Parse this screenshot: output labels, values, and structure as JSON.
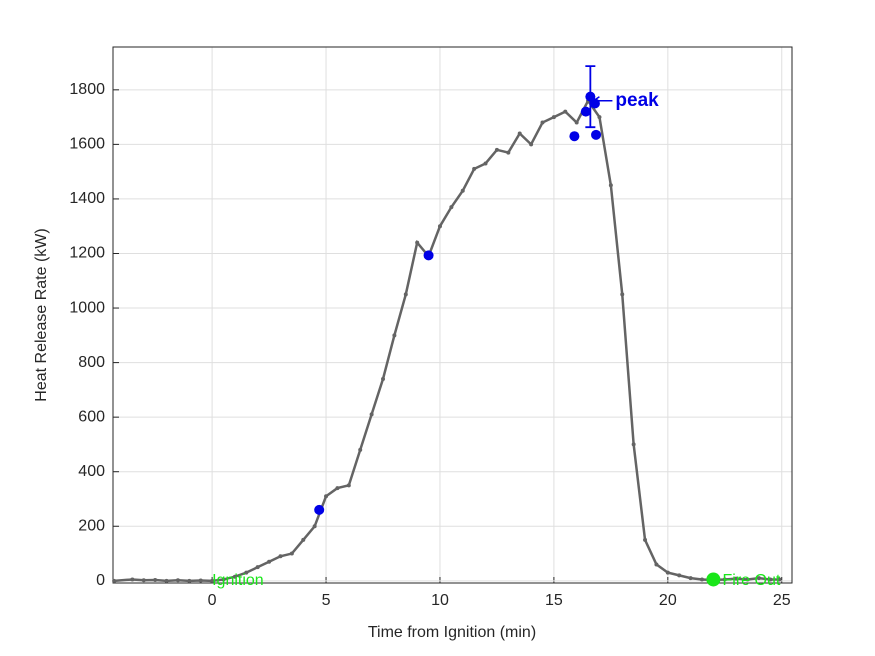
{
  "chart_data": {
    "type": "line",
    "xlabel": "Time from Ignition (min)",
    "ylabel": "Heat Release Rate (kW)",
    "xlim": [
      -4.35,
      25.45
    ],
    "ylim": [
      -8,
      1957
    ],
    "xticks": [
      0,
      5,
      10,
      15,
      20,
      25
    ],
    "yticks": [
      0,
      200,
      400,
      600,
      800,
      1000,
      1200,
      1400,
      1600,
      1800
    ],
    "grid": true,
    "series": [
      {
        "color": "#646464",
        "line": true,
        "x": [
          -4.3,
          -3.5,
          -3,
          -2.5,
          -2,
          -1.5,
          -1,
          -0.5,
          0,
          0.5,
          1,
          1.5,
          2,
          2.5,
          3,
          3.5,
          4,
          4.5,
          5,
          5.5,
          6,
          6.5,
          7,
          7.5,
          8,
          8.5,
          9,
          9.5,
          10,
          10.5,
          11,
          11.5,
          12,
          12.5,
          13,
          13.5,
          14,
          14.5,
          15,
          15.5,
          16,
          16.5,
          17,
          17.5,
          18,
          18.5,
          19,
          19.5,
          20,
          20.5,
          21,
          21.5,
          22,
          22.5,
          23,
          23.5,
          24,
          24.5,
          24.9
        ],
        "values": [
          0,
          5,
          2,
          3,
          0,
          2,
          0,
          1,
          0,
          5,
          15,
          30,
          50,
          70,
          90,
          100,
          150,
          200,
          310,
          340,
          350,
          480,
          610,
          740,
          900,
          1050,
          1240,
          1190,
          1300,
          1370,
          1430,
          1510,
          1530,
          1580,
          1570,
          1640,
          1600,
          1680,
          1700,
          1720,
          1680,
          1760,
          1700,
          1450,
          1050,
          500,
          150,
          60,
          30,
          20,
          10,
          5,
          3,
          5,
          8,
          5,
          10,
          5,
          5
        ]
      },
      {
        "color": "#0000e6",
        "line": false,
        "x": [
          4.7,
          9.5,
          15.9,
          16.4,
          16.6,
          16.8,
          16.85
        ],
        "values": [
          260,
          1193,
          1630,
          1720,
          1775,
          1750,
          1635
        ],
        "errors": [
          null,
          null,
          null,
          null,
          112,
          null,
          null
        ]
      },
      {
        "color": "#19e619",
        "line": false,
        "size": 7,
        "x": [
          22
        ],
        "values": [
          5
        ]
      }
    ],
    "annotations": [
      {
        "text": "Ignition",
        "x": 0,
        "y": 0,
        "color": "#19e619"
      },
      {
        "text": "Fire Out",
        "x": 22.4,
        "y": 0,
        "color": "#19e619"
      },
      {
        "text": "peak",
        "x": 17.7,
        "y": 1760,
        "color": "#0000e6",
        "bold": true,
        "arrow": true
      }
    ]
  }
}
